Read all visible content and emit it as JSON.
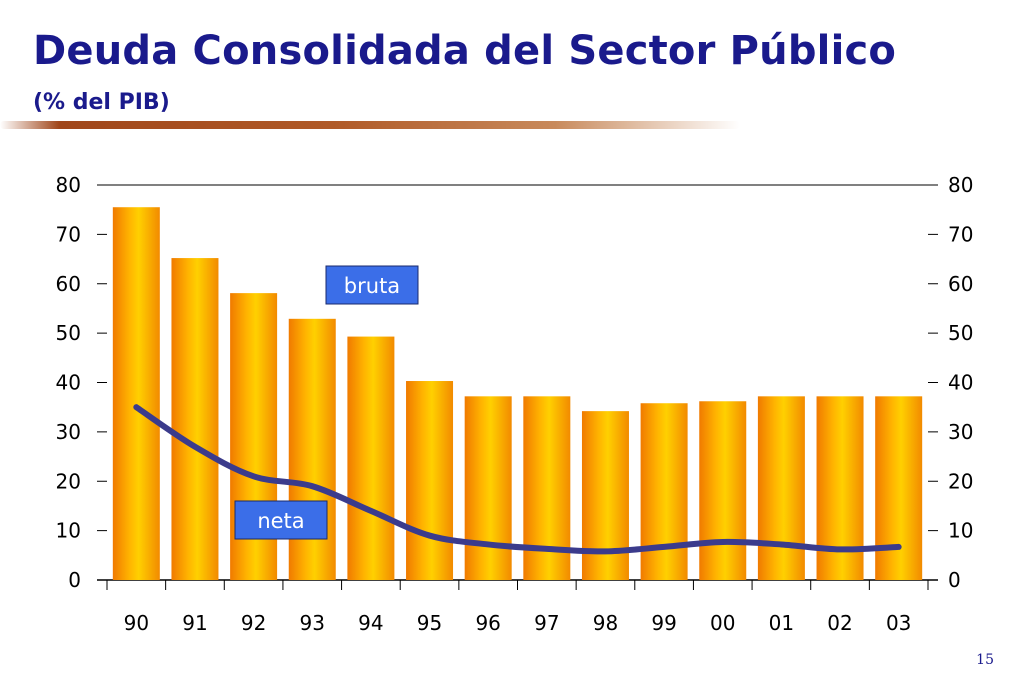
{
  "slide": {
    "title": "Deuda Consolidada del Sector Público",
    "subtitle": "(% del PIB)",
    "page_number": "15"
  },
  "chart_data": {
    "type": "bar",
    "title": "Deuda Consolidada del Sector Público",
    "subtitle": "(% del PIB)",
    "categories": [
      "90",
      "91",
      "92",
      "93",
      "94",
      "95",
      "96",
      "97",
      "98",
      "99",
      "00",
      "01",
      "02",
      "03"
    ],
    "series": [
      {
        "name": "bruta",
        "type": "bar",
        "color": "#ff9900",
        "values": [
          75.5,
          65.2,
          58.1,
          52.9,
          49.3,
          40.3,
          37.2,
          37.2,
          34.2,
          35.8,
          36.2,
          37.2,
          37.2,
          37.2
        ]
      },
      {
        "name": "neta",
        "type": "line",
        "color": "#3b3b8c",
        "values": [
          35.0,
          27.0,
          21.0,
          19.0,
          14.0,
          9.0,
          7.2,
          6.3,
          5.8,
          6.7,
          7.7,
          7.2,
          6.2,
          6.7
        ]
      }
    ],
    "ylim": [
      0,
      80
    ],
    "yticks": [
      0,
      10,
      20,
      30,
      40,
      50,
      60,
      70,
      80
    ],
    "y_axis_left": true,
    "y_axis_right": true,
    "grid": false,
    "legend": "inline labels"
  }
}
